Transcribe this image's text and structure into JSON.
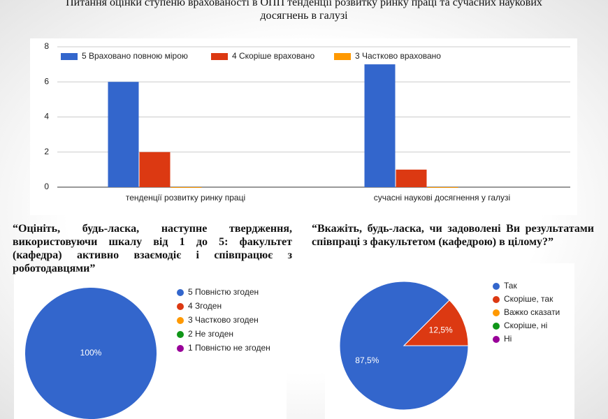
{
  "chart_data": [
    {
      "type": "bar",
      "title": "Питання оцінки ступеню врахованості в ОПП тенденції розвитку ринку праці та сучасних наукових досягнень в галузі",
      "categories": [
        "тенденції розвитку ринку праці",
        "сучасні наукові досягнення у галузі"
      ],
      "series": [
        {
          "name": "5 Враховано повною мірою",
          "color": "#3366cc",
          "values": [
            6,
            7
          ]
        },
        {
          "name": "4 Скоріше враховано",
          "color": "#dc3912",
          "values": [
            2,
            1
          ]
        },
        {
          "name": "3 Частково враховано",
          "color": "#ff9900",
          "values": [
            0,
            0
          ]
        }
      ],
      "ylim": [
        0,
        8
      ],
      "yticks": [
        0,
        2,
        4,
        6,
        8
      ],
      "grid": true,
      "legend": "top"
    },
    {
      "type": "pie",
      "title": "“Оцініть, будь-ласка, наступне твердження, використовуючи шкалу від 1 до 5: факультет (кафедра) активно взаємодіє і співпрацює з роботодавцями”",
      "categories": [
        "5 Повністю згоден",
        "4 Згоден",
        "3 Частково згоден",
        "2 Не згоден",
        "1 Повністю не згоден"
      ],
      "values": [
        100,
        0,
        0,
        0,
        0
      ],
      "value_labels": [
        "100%",
        null,
        null,
        null,
        null
      ],
      "colors": [
        "#3366cc",
        "#dc3912",
        "#ff9900",
        "#109618",
        "#990099"
      ],
      "legend": "right"
    },
    {
      "type": "pie",
      "title": "“Вкажіть, будь-ласка, чи задоволені Ви результатами співпраці з факультетом (кафедрою) в цілому?”",
      "categories": [
        "Так",
        "Скоріше, так",
        "Важко сказати",
        "Скоріше, ні",
        "Ні"
      ],
      "values": [
        87.5,
        12.5,
        0,
        0,
        0
      ],
      "value_labels": [
        "87,5%",
        "12,5%",
        null,
        null,
        null
      ],
      "colors": [
        "#3366cc",
        "#dc3912",
        "#ff9900",
        "#109618",
        "#990099"
      ],
      "legend": "right"
    }
  ]
}
